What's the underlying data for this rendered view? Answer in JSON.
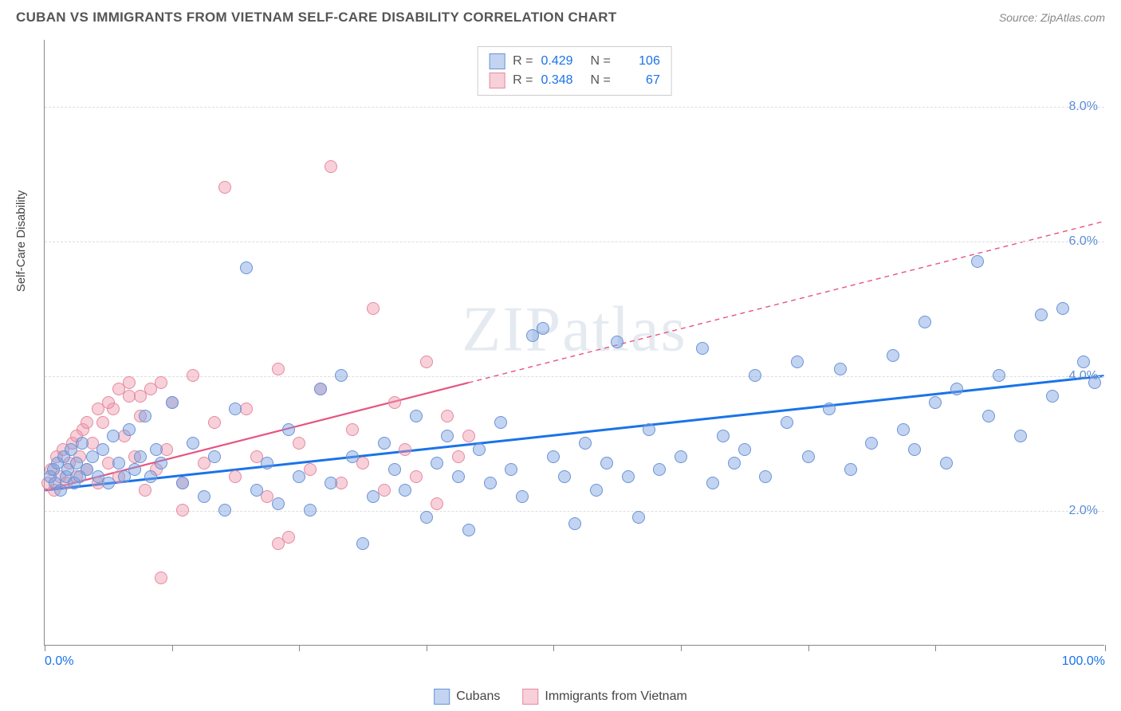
{
  "title": "CUBAN VS IMMIGRANTS FROM VIETNAM SELF-CARE DISABILITY CORRELATION CHART",
  "source": "Source: ZipAtlas.com",
  "watermark": "ZIPatlas",
  "ylabel": "Self-Care Disability",
  "colors": {
    "series_a_fill": "rgba(120,160,225,0.45)",
    "series_a_stroke": "#6b93d6",
    "series_b_fill": "rgba(240,150,170,0.45)",
    "series_b_stroke": "#e48aa0",
    "line_a": "#1a73e8",
    "line_b": "#e75480",
    "ytick_color": "#5b8dd6",
    "xtick_left": "#1a73e8",
    "xtick_right": "#1a73e8"
  },
  "xlim": [
    0,
    100
  ],
  "ylim": [
    0,
    9
  ],
  "y_gridlines": [
    2,
    4,
    6,
    8
  ],
  "y_tick_labels": [
    "2.0%",
    "4.0%",
    "6.0%",
    "8.0%"
  ],
  "x_ticks": [
    0,
    12,
    24,
    36,
    48,
    60,
    72,
    84,
    100
  ],
  "x_tick_labels": {
    "0": "0.0%",
    "100": "100.0%"
  },
  "legend_top": [
    {
      "series": "a",
      "R": "0.429",
      "N": "106"
    },
    {
      "series": "b",
      "R": "0.348",
      "N": "67"
    }
  ],
  "legend_bottom": [
    {
      "series": "a",
      "label": "Cubans"
    },
    {
      "series": "b",
      "label": "Immigrants from Vietnam"
    }
  ],
  "trend_lines": {
    "a": {
      "x1": 0,
      "y1": 2.3,
      "x2": 100,
      "y2": 4.0,
      "solid_until": 100
    },
    "b": {
      "x1": 0,
      "y1": 2.3,
      "x2": 100,
      "y2": 6.3,
      "solid_until": 40
    }
  },
  "marker_radius": 8,
  "series_a_points": [
    [
      0.5,
      2.5
    ],
    [
      0.8,
      2.6
    ],
    [
      1.0,
      2.4
    ],
    [
      1.2,
      2.7
    ],
    [
      1.5,
      2.3
    ],
    [
      1.8,
      2.8
    ],
    [
      2.0,
      2.5
    ],
    [
      2.2,
      2.6
    ],
    [
      2.5,
      2.9
    ],
    [
      2.8,
      2.4
    ],
    [
      3.0,
      2.7
    ],
    [
      3.3,
      2.5
    ],
    [
      3.5,
      3.0
    ],
    [
      4.0,
      2.6
    ],
    [
      4.5,
      2.8
    ],
    [
      5.0,
      2.5
    ],
    [
      5.5,
      2.9
    ],
    [
      6.0,
      2.4
    ],
    [
      6.5,
      3.1
    ],
    [
      7.0,
      2.7
    ],
    [
      7.5,
      2.5
    ],
    [
      8.0,
      3.2
    ],
    [
      8.5,
      2.6
    ],
    [
      9.0,
      2.8
    ],
    [
      9.5,
      3.4
    ],
    [
      10.0,
      2.5
    ],
    [
      10.5,
      2.9
    ],
    [
      11.0,
      2.7
    ],
    [
      12.0,
      3.6
    ],
    [
      13.0,
      2.4
    ],
    [
      14.0,
      3.0
    ],
    [
      15.0,
      2.2
    ],
    [
      16.0,
      2.8
    ],
    [
      17.0,
      2.0
    ],
    [
      18.0,
      3.5
    ],
    [
      19.0,
      5.6
    ],
    [
      20.0,
      2.3
    ],
    [
      21.0,
      2.7
    ],
    [
      22.0,
      2.1
    ],
    [
      23.0,
      3.2
    ],
    [
      24.0,
      2.5
    ],
    [
      25.0,
      2.0
    ],
    [
      26.0,
      3.8
    ],
    [
      27.0,
      2.4
    ],
    [
      28.0,
      4.0
    ],
    [
      29.0,
      2.8
    ],
    [
      30.0,
      1.5
    ],
    [
      31.0,
      2.2
    ],
    [
      32.0,
      3.0
    ],
    [
      33.0,
      2.6
    ],
    [
      34.0,
      2.3
    ],
    [
      35.0,
      3.4
    ],
    [
      36.0,
      1.9
    ],
    [
      37.0,
      2.7
    ],
    [
      38.0,
      3.1
    ],
    [
      39.0,
      2.5
    ],
    [
      40.0,
      1.7
    ],
    [
      41.0,
      2.9
    ],
    [
      42.0,
      2.4
    ],
    [
      43.0,
      3.3
    ],
    [
      44.0,
      2.6
    ],
    [
      45.0,
      2.2
    ],
    [
      46.0,
      4.6
    ],
    [
      47.0,
      4.7
    ],
    [
      48.0,
      2.8
    ],
    [
      49.0,
      2.5
    ],
    [
      50.0,
      1.8
    ],
    [
      51.0,
      3.0
    ],
    [
      52.0,
      2.3
    ],
    [
      53.0,
      2.7
    ],
    [
      54.0,
      4.5
    ],
    [
      55.0,
      2.5
    ],
    [
      56.0,
      1.9
    ],
    [
      57.0,
      3.2
    ],
    [
      58.0,
      2.6
    ],
    [
      60.0,
      2.8
    ],
    [
      62.0,
      4.4
    ],
    [
      63.0,
      2.4
    ],
    [
      64.0,
      3.1
    ],
    [
      65.0,
      2.7
    ],
    [
      66.0,
      2.9
    ],
    [
      67.0,
      4.0
    ],
    [
      68.0,
      2.5
    ],
    [
      70.0,
      3.3
    ],
    [
      71.0,
      4.2
    ],
    [
      72.0,
      2.8
    ],
    [
      74.0,
      3.5
    ],
    [
      75.0,
      4.1
    ],
    [
      76.0,
      2.6
    ],
    [
      78.0,
      3.0
    ],
    [
      80.0,
      4.3
    ],
    [
      81.0,
      3.2
    ],
    [
      82.0,
      2.9
    ],
    [
      83.0,
      4.8
    ],
    [
      84.0,
      3.6
    ],
    [
      85.0,
      2.7
    ],
    [
      86.0,
      3.8
    ],
    [
      88.0,
      5.7
    ],
    [
      89.0,
      3.4
    ],
    [
      90.0,
      4.0
    ],
    [
      92.0,
      3.1
    ],
    [
      94.0,
      4.9
    ],
    [
      95.0,
      3.7
    ],
    [
      96.0,
      5.0
    ],
    [
      98.0,
      4.2
    ],
    [
      99.0,
      3.9
    ]
  ],
  "series_b_points": [
    [
      0.3,
      2.4
    ],
    [
      0.6,
      2.6
    ],
    [
      0.9,
      2.3
    ],
    [
      1.1,
      2.8
    ],
    [
      1.4,
      2.5
    ],
    [
      1.7,
      2.9
    ],
    [
      2.0,
      2.4
    ],
    [
      2.3,
      2.7
    ],
    [
      2.6,
      3.0
    ],
    [
      3.0,
      2.5
    ],
    [
      3.3,
      2.8
    ],
    [
      3.6,
      3.2
    ],
    [
      4.0,
      2.6
    ],
    [
      4.5,
      3.0
    ],
    [
      5.0,
      2.4
    ],
    [
      5.5,
      3.3
    ],
    [
      6.0,
      2.7
    ],
    [
      6.5,
      3.5
    ],
    [
      7.0,
      2.5
    ],
    [
      7.5,
      3.1
    ],
    [
      8.0,
      3.7
    ],
    [
      8.5,
      2.8
    ],
    [
      9.0,
      3.4
    ],
    [
      9.5,
      2.3
    ],
    [
      10.0,
      3.8
    ],
    [
      10.5,
      2.6
    ],
    [
      11.0,
      3.9
    ],
    [
      11.5,
      2.9
    ],
    [
      12.0,
      3.6
    ],
    [
      13.0,
      2.4
    ],
    [
      14.0,
      4.0
    ],
    [
      15.0,
      2.7
    ],
    [
      16.0,
      3.3
    ],
    [
      17.0,
      6.8
    ],
    [
      18.0,
      2.5
    ],
    [
      19.0,
      3.5
    ],
    [
      20.0,
      2.8
    ],
    [
      21.0,
      2.2
    ],
    [
      22.0,
      4.1
    ],
    [
      23.0,
      1.6
    ],
    [
      24.0,
      3.0
    ],
    [
      25.0,
      2.6
    ],
    [
      26.0,
      3.8
    ],
    [
      27.0,
      7.1
    ],
    [
      28.0,
      2.4
    ],
    [
      29.0,
      3.2
    ],
    [
      30.0,
      2.7
    ],
    [
      31.0,
      5.0
    ],
    [
      32.0,
      2.3
    ],
    [
      33.0,
      3.6
    ],
    [
      34.0,
      2.9
    ],
    [
      35.0,
      2.5
    ],
    [
      36.0,
      4.2
    ],
    [
      37.0,
      2.1
    ],
    [
      38.0,
      3.4
    ],
    [
      39.0,
      2.8
    ],
    [
      40.0,
      3.1
    ],
    [
      11.0,
      1.0
    ],
    [
      13.0,
      2.0
    ],
    [
      22.0,
      1.5
    ],
    [
      7.0,
      3.8
    ],
    [
      8.0,
      3.9
    ],
    [
      9.0,
      3.7
    ],
    [
      6.0,
      3.6
    ],
    [
      5.0,
      3.5
    ],
    [
      4.0,
      3.3
    ],
    [
      3.0,
      3.1
    ]
  ]
}
